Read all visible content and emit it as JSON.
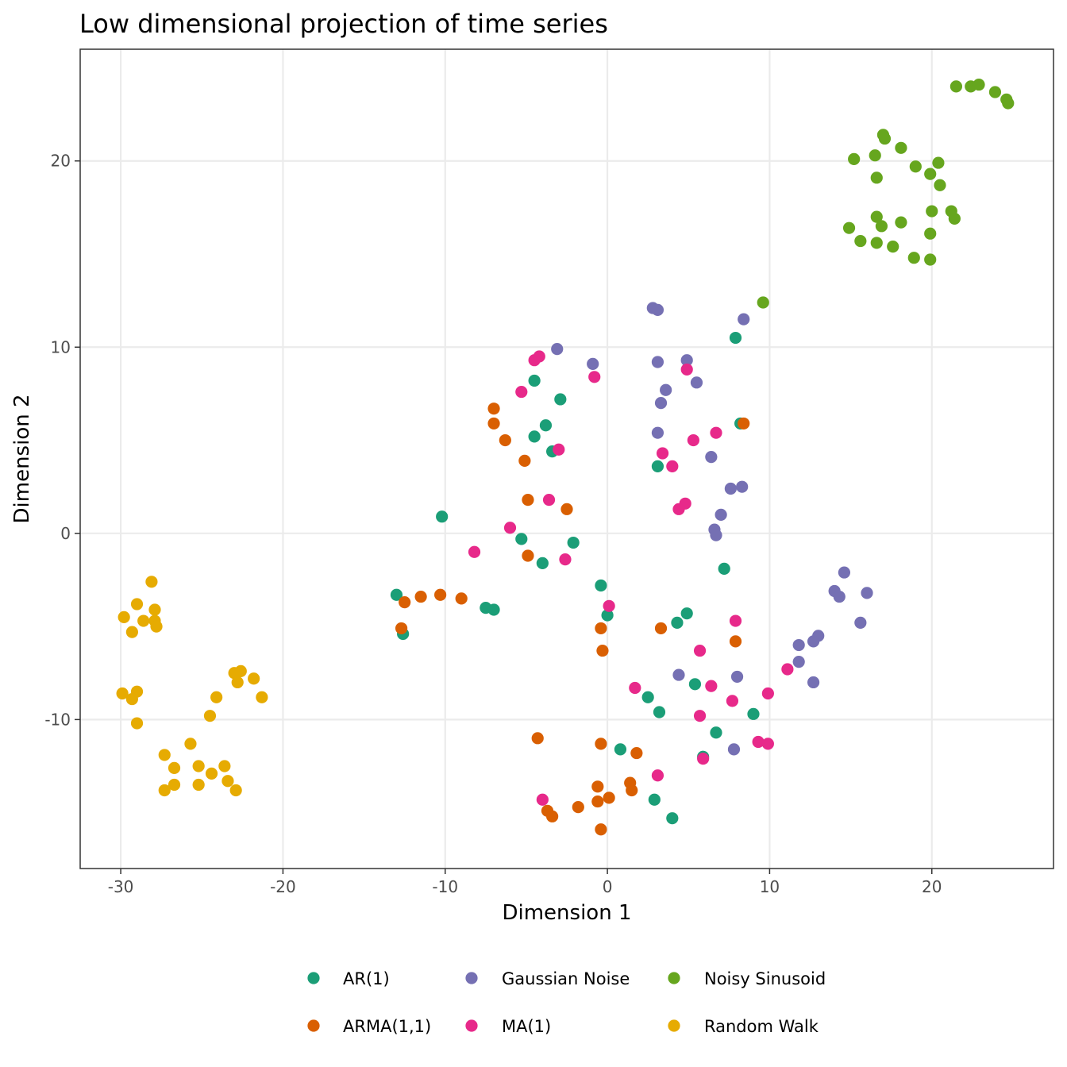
{
  "chart_data": {
    "type": "scatter",
    "title": "Low dimensional projection of time series",
    "xlabel": "Dimension 1",
    "ylabel": "Dimension 2",
    "xlim": [
      -32.5,
      27.5
    ],
    "ylim": [
      -18.0,
      26.0
    ],
    "x_ticks": [
      -30,
      -20,
      -10,
      0,
      10,
      20
    ],
    "x_tick_labels": [
      "-30",
      "-20",
      "-10",
      "0",
      "10",
      "20"
    ],
    "y_ticks": [
      -10,
      0,
      10,
      20
    ],
    "y_tick_labels": [
      "-10",
      "0",
      "10",
      "20"
    ],
    "grid": true,
    "legend_position": "bottom",
    "series": [
      {
        "name": "AR(1)",
        "color": "#1b9e77",
        "points": [
          [
            -4.5,
            8.2
          ],
          [
            -2.9,
            7.2
          ],
          [
            -3.8,
            5.8
          ],
          [
            -4.5,
            5.2
          ],
          [
            -3.4,
            4.4
          ],
          [
            -10.2,
            0.9
          ],
          [
            -5.3,
            -0.3
          ],
          [
            -4.0,
            -1.6
          ],
          [
            -2.1,
            -0.5
          ],
          [
            -13.0,
            -3.3
          ],
          [
            -12.6,
            -5.4
          ],
          [
            -7.5,
            -4.0
          ],
          [
            -7.0,
            -4.1
          ],
          [
            7.9,
            10.5
          ],
          [
            8.2,
            5.9
          ],
          [
            3.1,
            3.6
          ],
          [
            7.2,
            -1.9
          ],
          [
            -0.4,
            -2.8
          ],
          [
            0.0,
            -4.4
          ],
          [
            4.3,
            -4.8
          ],
          [
            4.9,
            -4.3
          ],
          [
            2.5,
            -8.8
          ],
          [
            3.2,
            -9.6
          ],
          [
            5.4,
            -8.1
          ],
          [
            6.7,
            -10.7
          ],
          [
            9.0,
            -9.7
          ],
          [
            0.8,
            -11.6
          ],
          [
            5.9,
            -12.0
          ],
          [
            2.9,
            -14.3
          ],
          [
            4.0,
            -15.3
          ]
        ]
      },
      {
        "name": "ARMA(1,1)",
        "color": "#d95f02",
        "points": [
          [
            -7.0,
            6.7
          ],
          [
            -7.0,
            5.9
          ],
          [
            -6.3,
            5.0
          ],
          [
            -5.1,
            3.9
          ],
          [
            -4.9,
            1.8
          ],
          [
            -2.5,
            1.3
          ],
          [
            -4.9,
            -1.2
          ],
          [
            -12.5,
            -3.7
          ],
          [
            -11.5,
            -3.4
          ],
          [
            -10.3,
            -3.3
          ],
          [
            -9.0,
            -3.5
          ],
          [
            -12.7,
            -5.1
          ],
          [
            -0.4,
            -5.1
          ],
          [
            -0.3,
            -6.3
          ],
          [
            3.3,
            -5.1
          ],
          [
            7.9,
            -5.8
          ],
          [
            8.4,
            5.9
          ],
          [
            -4.3,
            -11.0
          ],
          [
            -0.4,
            -11.3
          ],
          [
            1.8,
            -11.8
          ],
          [
            1.4,
            -13.4
          ],
          [
            1.5,
            -13.8
          ],
          [
            -0.6,
            -13.6
          ],
          [
            0.1,
            -14.2
          ],
          [
            -0.6,
            -14.4
          ],
          [
            -3.7,
            -14.9
          ],
          [
            -3.4,
            -15.2
          ],
          [
            -1.8,
            -14.7
          ],
          [
            -0.4,
            -15.9
          ]
        ]
      },
      {
        "name": "Gaussian Noise",
        "color": "#7570b3",
        "points": [
          [
            2.8,
            12.1
          ],
          [
            3.1,
            12.0
          ],
          [
            8.4,
            11.5
          ],
          [
            -3.1,
            9.9
          ],
          [
            -0.9,
            9.1
          ],
          [
            3.1,
            9.2
          ],
          [
            4.9,
            9.3
          ],
          [
            3.6,
            7.7
          ],
          [
            5.5,
            8.1
          ],
          [
            3.3,
            7.0
          ],
          [
            3.1,
            5.4
          ],
          [
            6.4,
            4.1
          ],
          [
            7.6,
            2.4
          ],
          [
            8.3,
            2.5
          ],
          [
            7.0,
            1.0
          ],
          [
            6.6,
            0.2
          ],
          [
            6.7,
            -0.1
          ],
          [
            14.6,
            -2.1
          ],
          [
            14.0,
            -3.1
          ],
          [
            14.3,
            -3.4
          ],
          [
            16.0,
            -3.2
          ],
          [
            15.6,
            -4.8
          ],
          [
            13.0,
            -5.5
          ],
          [
            12.7,
            -5.8
          ],
          [
            11.8,
            -6.0
          ],
          [
            11.8,
            -6.9
          ],
          [
            12.7,
            -8.0
          ],
          [
            4.4,
            -7.6
          ],
          [
            8.0,
            -7.7
          ],
          [
            7.8,
            -11.6
          ]
        ]
      },
      {
        "name": "MA(1)",
        "color": "#e7298a",
        "points": [
          [
            -4.5,
            9.3
          ],
          [
            -4.2,
            9.5
          ],
          [
            -5.3,
            7.6
          ],
          [
            -0.8,
            8.4
          ],
          [
            4.9,
            8.8
          ],
          [
            -3.0,
            4.5
          ],
          [
            6.7,
            5.4
          ],
          [
            5.3,
            5.0
          ],
          [
            3.4,
            4.3
          ],
          [
            4.0,
            3.6
          ],
          [
            -3.6,
            1.8
          ],
          [
            4.8,
            1.6
          ],
          [
            4.4,
            1.3
          ],
          [
            -6.0,
            0.3
          ],
          [
            -8.2,
            -1.0
          ],
          [
            -2.6,
            -1.4
          ],
          [
            0.1,
            -3.9
          ],
          [
            7.9,
            -4.7
          ],
          [
            5.7,
            -6.3
          ],
          [
            11.1,
            -7.3
          ],
          [
            1.7,
            -8.3
          ],
          [
            6.4,
            -8.2
          ],
          [
            9.9,
            -8.6
          ],
          [
            7.7,
            -9.0
          ],
          [
            5.7,
            -9.8
          ],
          [
            9.3,
            -11.2
          ],
          [
            9.9,
            -11.3
          ],
          [
            5.9,
            -12.1
          ],
          [
            3.1,
            -13.0
          ],
          [
            -4.0,
            -14.3
          ]
        ]
      },
      {
        "name": "Noisy Sinusoid",
        "color": "#66a61e",
        "points": [
          [
            21.5,
            24.0
          ],
          [
            22.4,
            24.0
          ],
          [
            22.9,
            24.1
          ],
          [
            23.9,
            23.7
          ],
          [
            24.6,
            23.3
          ],
          [
            24.7,
            23.1
          ],
          [
            17.0,
            21.4
          ],
          [
            17.1,
            21.2
          ],
          [
            18.1,
            20.7
          ],
          [
            15.2,
            20.1
          ],
          [
            16.5,
            20.3
          ],
          [
            19.0,
            19.7
          ],
          [
            20.4,
            19.9
          ],
          [
            19.9,
            19.3
          ],
          [
            20.5,
            18.7
          ],
          [
            16.6,
            19.1
          ],
          [
            16.6,
            17.0
          ],
          [
            16.9,
            16.5
          ],
          [
            18.1,
            16.7
          ],
          [
            20.0,
            17.3
          ],
          [
            21.2,
            17.3
          ],
          [
            21.4,
            16.9
          ],
          [
            14.9,
            16.4
          ],
          [
            15.6,
            15.7
          ],
          [
            16.6,
            15.6
          ],
          [
            17.6,
            15.4
          ],
          [
            19.9,
            16.1
          ],
          [
            18.9,
            14.8
          ],
          [
            19.9,
            14.7
          ],
          [
            9.6,
            12.4
          ]
        ]
      },
      {
        "name": "Random Walk",
        "color": "#e6ab02",
        "points": [
          [
            -28.1,
            -2.6
          ],
          [
            -29.0,
            -3.8
          ],
          [
            -27.9,
            -4.1
          ],
          [
            -29.8,
            -4.5
          ],
          [
            -28.6,
            -4.7
          ],
          [
            -27.9,
            -4.7
          ],
          [
            -27.8,
            -5.0
          ],
          [
            -29.3,
            -5.3
          ],
          [
            -29.9,
            -8.6
          ],
          [
            -29.0,
            -8.5
          ],
          [
            -29.3,
            -8.9
          ],
          [
            -29.0,
            -10.2
          ],
          [
            -23.0,
            -7.5
          ],
          [
            -22.6,
            -7.4
          ],
          [
            -21.8,
            -7.8
          ],
          [
            -22.8,
            -8.0
          ],
          [
            -21.3,
            -8.8
          ],
          [
            -24.1,
            -8.8
          ],
          [
            -24.5,
            -9.8
          ],
          [
            -27.3,
            -11.9
          ],
          [
            -25.7,
            -11.3
          ],
          [
            -26.7,
            -12.6
          ],
          [
            -25.2,
            -12.5
          ],
          [
            -23.6,
            -12.5
          ],
          [
            -24.4,
            -12.9
          ],
          [
            -23.4,
            -13.3
          ],
          [
            -26.7,
            -13.5
          ],
          [
            -25.2,
            -13.5
          ],
          [
            -27.3,
            -13.8
          ],
          [
            -22.9,
            -13.8
          ]
        ]
      }
    ]
  }
}
